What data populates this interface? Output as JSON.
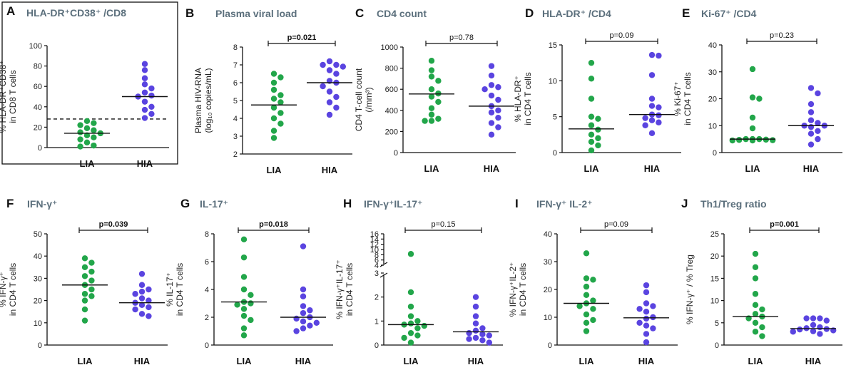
{
  "chart_data": [
    {
      "id": "A",
      "letter": "A",
      "type": "scatter",
      "title": "HLA-DR⁺CD38⁺ /CD8",
      "ylabel": [
        "% HLA-DR⁺CD38⁺",
        "in CD8 T cells"
      ],
      "ylim": [
        0,
        100
      ],
      "yticks": [
        0,
        20,
        40,
        60,
        80,
        100
      ],
      "categories": [
        "LIA",
        "HIA"
      ],
      "series": [
        {
          "name": "LIA",
          "color": "#22a64a",
          "values": [
            26,
            24,
            22,
            19,
            17,
            15,
            14,
            12,
            10,
            8,
            5,
            2,
            1
          ],
          "median": 14
        },
        {
          "name": "HIA",
          "color": "#5a44e0",
          "values": [
            82,
            76,
            68,
            62,
            58,
            54,
            51,
            50,
            45,
            40,
            37,
            33,
            29
          ],
          "median": 50
        }
      ],
      "threshold": 28,
      "pvalue": "",
      "boxed": true
    },
    {
      "id": "B",
      "letter": "B",
      "type": "scatter",
      "title": "Plasma viral load",
      "ylabel": [
        "Plasma HIV-RNA",
        "(log₁₀ copies/mL)"
      ],
      "ylim": [
        2,
        8
      ],
      "yticks": [
        2,
        3,
        4,
        5,
        6,
        7,
        8
      ],
      "categories": [
        "LIA",
        "HIA"
      ],
      "series": [
        {
          "name": "LIA",
          "color": "#22a64a",
          "values": [
            6.5,
            6.3,
            6.0,
            5.6,
            5.3,
            5.1,
            4.9,
            4.6,
            4.3,
            4.0,
            3.7,
            3.3,
            2.9
          ],
          "median": 4.75
        },
        {
          "name": "HIA",
          "color": "#5a44e0",
          "values": [
            7.2,
            7.0,
            7.0,
            6.9,
            6.7,
            6.5,
            6.1,
            6.0,
            5.8,
            5.5,
            5.2,
            4.9,
            4.6,
            4.2
          ],
          "median": 6.0
        }
      ],
      "pvalue": "p=0.021",
      "significant": true
    },
    {
      "id": "C",
      "letter": "C",
      "type": "scatter",
      "title": "CD4 count",
      "ylabel": [
        "CD4 T-cell count",
        "(/mm³)"
      ],
      "ylim": [
        0,
        1000
      ],
      "yticks": [
        0,
        200,
        400,
        600,
        800,
        1000
      ],
      "categories": [
        "LIA",
        "HIA"
      ],
      "series": [
        {
          "name": "LIA",
          "color": "#22a64a",
          "values": [
            870,
            780,
            720,
            680,
            600,
            560,
            530,
            480,
            420,
            360,
            320,
            300,
            300
          ],
          "median": 555
        },
        {
          "name": "HIA",
          "color": "#5a44e0",
          "values": [
            820,
            730,
            640,
            620,
            600,
            540,
            500,
            440,
            400,
            380,
            330,
            280,
            240,
            170
          ],
          "median": 440
        }
      ],
      "pvalue": "p=0.78",
      "significant": false
    },
    {
      "id": "D",
      "letter": "D",
      "type": "scatter",
      "title": "HLA-DR⁺ /CD4",
      "ylabel": [
        "% HLA-DR⁺",
        "in CD4 T cells"
      ],
      "ylim": [
        0,
        15
      ],
      "yticks": [
        0,
        5,
        10,
        15
      ],
      "categories": [
        "LIA",
        "HIA"
      ],
      "series": [
        {
          "name": "LIA",
          "color": "#22a64a",
          "values": [
            12.5,
            10.3,
            7.5,
            5.0,
            4.7,
            3.8,
            3.2,
            2.5,
            2.0,
            1.5,
            1.0,
            0.3
          ],
          "median": 3.3
        },
        {
          "name": "HIA",
          "color": "#5a44e0",
          "values": [
            13.6,
            13.5,
            10.8,
            7.5,
            6.5,
            6.3,
            5.3,
            5.2,
            4.8,
            4.5,
            4.2,
            3.8,
            2.7
          ],
          "median": 5.3
        }
      ],
      "pvalue": "p=0.09",
      "significant": false
    },
    {
      "id": "E",
      "letter": "E",
      "type": "scatter",
      "title": "Ki-67⁺ /CD4",
      "ylabel": [
        "% Ki-67⁺",
        "in CD4 T cells"
      ],
      "ylim": [
        0,
        40
      ],
      "yticks": [
        0,
        10,
        20,
        30,
        40
      ],
      "categories": [
        "LIA",
        "HIA"
      ],
      "series": [
        {
          "name": "LIA",
          "color": "#22a64a",
          "values": [
            31,
            20.5,
            20,
            13,
            9,
            5,
            5,
            5,
            4.8,
            4.7,
            4.6,
            4.5,
            4.5
          ],
          "median": 5
        },
        {
          "name": "HIA",
          "color": "#5a44e0",
          "values": [
            24,
            22,
            18,
            15,
            12,
            11,
            10,
            10,
            9.5,
            8,
            7,
            5,
            3
          ],
          "median": 10
        }
      ],
      "pvalue": "p=0.23",
      "significant": false
    },
    {
      "id": "F",
      "letter": "F",
      "type": "scatter",
      "title": "IFN-γ⁺",
      "ylabel": [
        "% IFN-γ⁺",
        "in CD4 T cells"
      ],
      "ylim": [
        0,
        50
      ],
      "yticks": [
        0,
        10,
        20,
        30,
        40,
        50
      ],
      "categories": [
        "LIA",
        "HIA"
      ],
      "series": [
        {
          "name": "LIA",
          "color": "#22a64a",
          "values": [
            39,
            37,
            35,
            33,
            31,
            29,
            27,
            25,
            23,
            22,
            20,
            16,
            11
          ],
          "median": 27
        },
        {
          "name": "HIA",
          "color": "#5a44e0",
          "values": [
            32,
            27,
            25,
            24,
            23,
            21,
            20,
            19,
            18,
            17,
            16,
            14,
            13
          ],
          "median": 19
        }
      ],
      "pvalue": "p=0.039",
      "significant": true
    },
    {
      "id": "G",
      "letter": "G",
      "type": "scatter",
      "title": "IL-17⁺",
      "ylabel": [
        "% IL-17⁺",
        "in CD4 T cells"
      ],
      "ylim": [
        0,
        8
      ],
      "yticks": [
        0,
        2,
        4,
        6,
        8
      ],
      "categories": [
        "LIA",
        "HIA"
      ],
      "series": [
        {
          "name": "LIA",
          "color": "#22a64a",
          "values": [
            7.6,
            6.3,
            4.9,
            4.0,
            3.6,
            3.1,
            3.0,
            2.9,
            2.6,
            2.1,
            1.8,
            1.2,
            0.7
          ],
          "median": 3.1
        },
        {
          "name": "HIA",
          "color": "#5a44e0",
          "values": [
            7.1,
            4.0,
            3.5,
            2.8,
            2.5,
            2.3,
            2.0,
            1.9,
            1.7,
            1.6,
            1.4,
            1.2,
            1.0
          ],
          "median": 2.0
        }
      ],
      "pvalue": "p=0.018",
      "significant": true
    },
    {
      "id": "H",
      "letter": "H",
      "type": "scatter",
      "title": "IFN-γ⁺IL-17⁺",
      "ylabel": [
        "% IFN-γ⁺IL-17⁺",
        "in CD4 T cells"
      ],
      "ylim": [
        0,
        16
      ],
      "yticks": [
        0,
        1,
        2,
        3,
        4,
        6,
        8,
        10,
        12,
        14,
        16
      ],
      "ytick_labels": [
        "0",
        "1",
        "2",
        "3",
        "4",
        "6",
        "8",
        "10",
        "12",
        "14",
        "16"
      ],
      "axis_break": true,
      "categories": [
        "LIA",
        "HIA"
      ],
      "series": [
        {
          "name": "LIA",
          "color": "#22a64a",
          "values": [
            8.3,
            2.2,
            1.6,
            1.2,
            1.0,
            0.9,
            0.85,
            0.8,
            0.7,
            0.5,
            0.4,
            0.3,
            0.1
          ],
          "median": 0.85
        },
        {
          "name": "HIA",
          "color": "#5a44e0",
          "values": [
            2.0,
            1.6,
            1.2,
            0.9,
            0.7,
            0.6,
            0.5,
            0.45,
            0.4,
            0.3,
            0.25,
            0.2,
            0.1
          ],
          "median": 0.55
        }
      ],
      "pvalue": "p=0.15",
      "significant": false
    },
    {
      "id": "I",
      "letter": "I",
      "type": "scatter",
      "title": "IFN-γ⁺ IL-2⁺",
      "ylabel": [
        "% IFN-γ⁺IL-2⁺",
        "in CD4 T cells"
      ],
      "ylim": [
        0,
        40
      ],
      "yticks": [
        0,
        10,
        20,
        30,
        40
      ],
      "categories": [
        "LIA",
        "HIA"
      ],
      "series": [
        {
          "name": "LIA",
          "color": "#22a64a",
          "values": [
            33,
            24,
            23.5,
            21,
            18,
            16,
            15,
            14,
            13,
            11,
            9,
            8,
            5
          ],
          "median": 15
        },
        {
          "name": "HIA",
          "color": "#5a44e0",
          "values": [
            21.5,
            19,
            15,
            14,
            13,
            12,
            10,
            9.5,
            8,
            7,
            6,
            4,
            1
          ],
          "median": 9.8
        }
      ],
      "pvalue": "p=0.09",
      "significant": false
    },
    {
      "id": "J",
      "letter": "J",
      "type": "scatter",
      "title": "Th1/Treg ratio",
      "ylabel": [
        "% IFN-γ⁺ / % Treg"
      ],
      "ylim": [
        0,
        25
      ],
      "yticks": [
        0,
        5,
        10,
        15,
        20,
        25
      ],
      "categories": [
        "LIA",
        "HIA"
      ],
      "series": [
        {
          "name": "LIA",
          "color": "#22a64a",
          "values": [
            20.5,
            17.5,
            15,
            11.5,
            9,
            8,
            7,
            6.4,
            6,
            5,
            4,
            3,
            2
          ],
          "median": 6.4
        },
        {
          "name": "HIA",
          "color": "#5a44e0",
          "values": [
            6,
            6,
            6,
            5.5,
            4.5,
            4,
            3.8,
            3.6,
            3.5,
            3.3,
            3.1,
            3.0,
            2.5
          ],
          "median": 3.7
        }
      ],
      "pvalue": "p=0.001",
      "significant": true
    }
  ]
}
